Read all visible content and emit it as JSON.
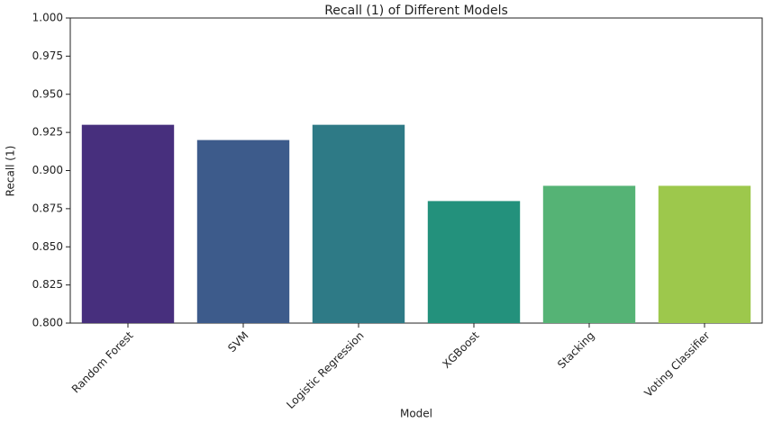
{
  "chart_data": {
    "type": "bar",
    "title": "Recall (1) of Different Models",
    "x_label": "Model",
    "y_label": "Recall (1)",
    "categories": [
      "Random Forest",
      "SVM",
      "Logistic Regression",
      "XGBoost",
      "Stacking",
      "Voting Classifier"
    ],
    "values": [
      0.93,
      0.92,
      0.93,
      0.88,
      0.89,
      0.89
    ],
    "colors": [
      "#472f7d",
      "#3d5b8b",
      "#2e7a86",
      "#23917c",
      "#55b375",
      "#9dc84c"
    ],
    "ylim": [
      0.8,
      1.0
    ],
    "yticks": [
      {
        "value": 0.8,
        "label": "0.800"
      },
      0.825,
      {
        "value": 0.85,
        "label": "0.850"
      },
      0.875,
      {
        "value": 0.9,
        "label": "0.900"
      },
      0.925,
      {
        "value": 0.95,
        "label": "0.950"
      },
      0.975,
      {
        "value": 1.0,
        "label": "1.000"
      }
    ]
  }
}
